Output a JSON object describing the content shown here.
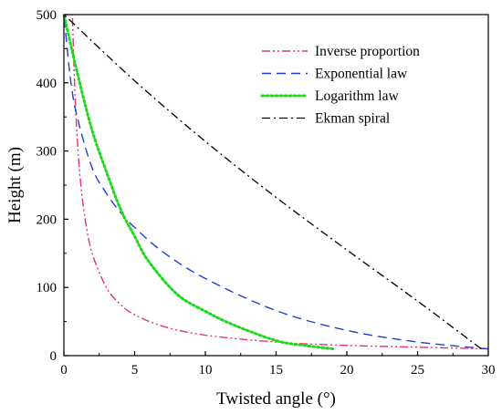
{
  "chart_data": {
    "type": "line",
    "xlabel": "Twisted angle (°)",
    "ylabel": "Height (m)",
    "xlim": [
      0,
      30
    ],
    "ylim": [
      0,
      500
    ],
    "xticks": [
      0,
      5,
      10,
      15,
      20,
      25,
      30
    ],
    "yticks": [
      0,
      100,
      200,
      300,
      400,
      500
    ],
    "grid": false,
    "legend_position": "top-right",
    "series": [
      {
        "name": "Inverse proportion",
        "color": "#e8336b",
        "dash": "dash-dot-dot",
        "x": [
          30,
          20,
          15,
          10,
          7,
          5,
          4,
          3,
          2,
          1.5,
          1.2,
          1.0,
          0.8,
          0.6
        ],
        "y": [
          10,
          15,
          20,
          30,
          43,
          60,
          75,
          100,
          150,
          200,
          250,
          300,
          375,
          500
        ]
      },
      {
        "name": "Exponential law",
        "color": "#1f3fd6",
        "dash": "dashed",
        "x": [
          30,
          25,
          20,
          15,
          10,
          7,
          5,
          4,
          3,
          2,
          1,
          0.5,
          0
        ],
        "y": [
          10,
          20,
          37,
          66,
          113,
          152,
          188,
          210,
          238,
          275,
          345,
          400,
          500
        ]
      },
      {
        "name": "Logarithm law",
        "color": "#1ed81e",
        "dash": "dotted",
        "x": [
          19,
          17,
          15,
          12,
          10,
          8,
          6,
          5,
          4,
          3,
          2,
          1,
          0
        ],
        "y": [
          10,
          15,
          22,
          45,
          65,
          90,
          138,
          175,
          215,
          270,
          330,
          410,
          500
        ]
      },
      {
        "name": "Ekman spiral",
        "color": "#000000",
        "dash": "dash-dot",
        "x": [
          29.5,
          25,
          20,
          15,
          10,
          5,
          0
        ],
        "y": [
          10,
          80,
          155,
          232,
          314,
          403,
          500
        ]
      }
    ]
  }
}
